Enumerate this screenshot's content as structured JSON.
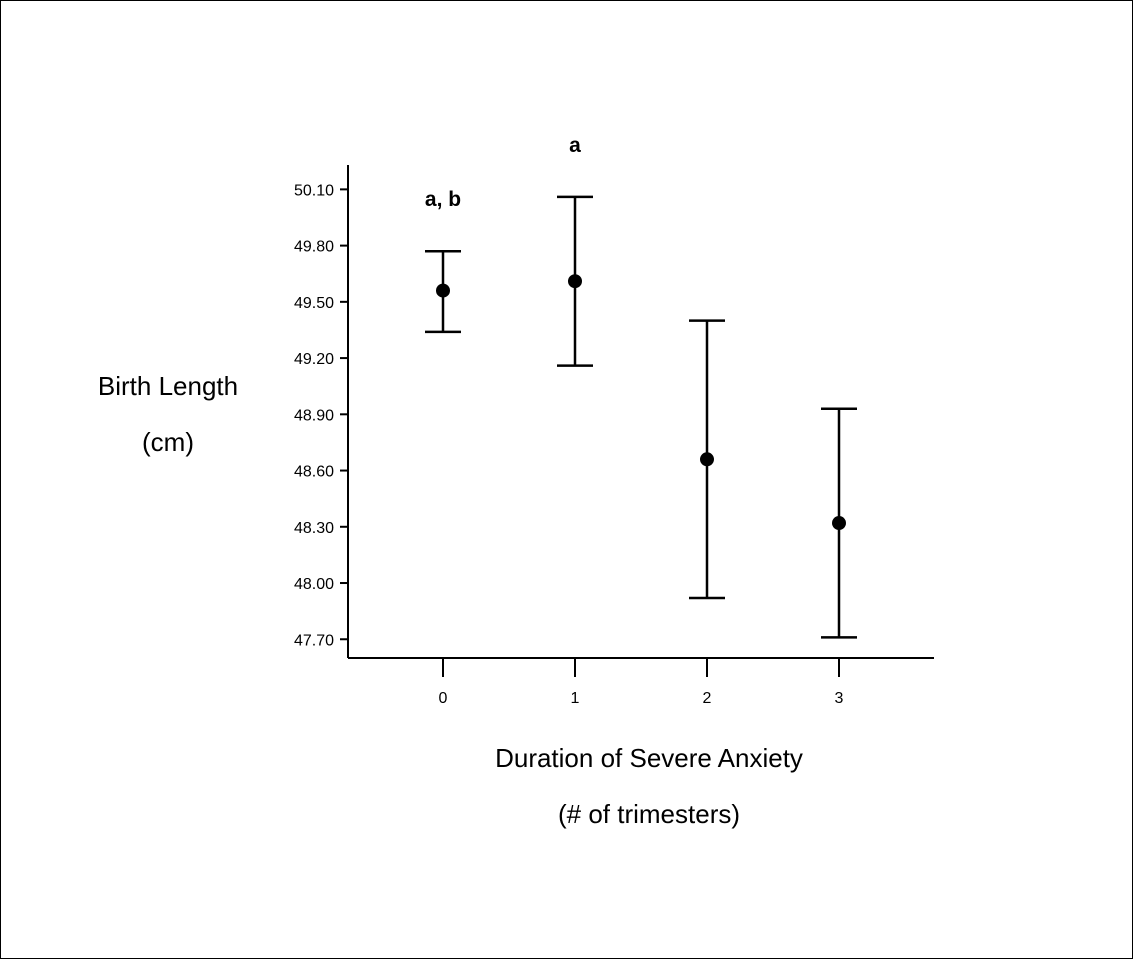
{
  "chart_data": {
    "type": "scatter",
    "error_bars": true,
    "xlabel": [
      "Duration of Severe Anxiety",
      "(# of trimesters)"
    ],
    "ylabel": [
      "Birth Length",
      "(cm)"
    ],
    "x_categories": [
      "0",
      "1",
      "2",
      "3"
    ],
    "y_ticks": [
      "47.70",
      "48.00",
      "48.30",
      "48.60",
      "48.90",
      "49.20",
      "49.50",
      "49.80",
      "50.10"
    ],
    "ylim": [
      47.6,
      50.23
    ],
    "grid": false,
    "points": [
      {
        "x": "0",
        "mean": 49.56,
        "lower": 49.34,
        "upper": 49.77,
        "annotation": "a, b"
      },
      {
        "x": "1",
        "mean": 49.61,
        "lower": 49.16,
        "upper": 50.06,
        "annotation": "a"
      },
      {
        "x": "2",
        "mean": 48.66,
        "lower": 47.92,
        "upper": 49.4,
        "annotation": ""
      },
      {
        "x": "3",
        "mean": 48.32,
        "lower": 47.71,
        "upper": 48.93,
        "annotation": ""
      }
    ]
  }
}
